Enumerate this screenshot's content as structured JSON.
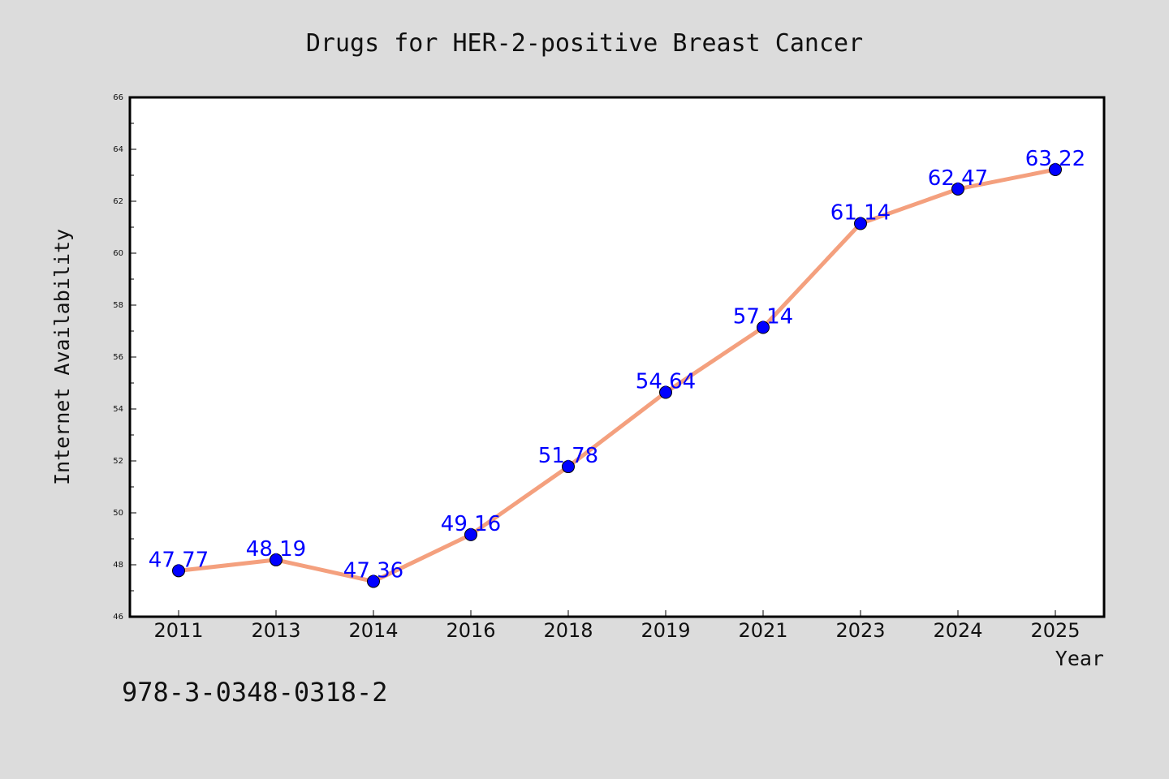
{
  "chart_data": {
    "type": "line",
    "title": "Drugs for HER-2-positive Breast Cancer",
    "xlabel": "Year",
    "ylabel": "Internet Availability",
    "categories": [
      "2011",
      "2013",
      "2014",
      "2016",
      "2018",
      "2019",
      "2021",
      "2023",
      "2024",
      "2025"
    ],
    "series": [
      {
        "values": [
          47.77,
          48.19,
          47.36,
          49.16,
          51.78,
          54.64,
          57.14,
          61.14,
          62.47,
          63.22
        ],
        "data_labels": [
          "47.77",
          "48.19",
          "47.36",
          "49.16",
          "51.78",
          "54.64",
          "57.14",
          "61.14",
          "62.47",
          "63.22"
        ]
      }
    ],
    "ylim": [
      46,
      66
    ],
    "yticks": [
      46,
      48,
      50,
      52,
      54,
      56,
      58,
      60,
      62,
      64,
      66
    ],
    "grid": false,
    "colors": {
      "line": "#f4a07e",
      "marker": "#0000ff",
      "label": "#0000ff",
      "background": "#dcdcdc",
      "plot": "#ffffff"
    }
  },
  "footer": {
    "text": "978-3-0348-0318-2"
  }
}
